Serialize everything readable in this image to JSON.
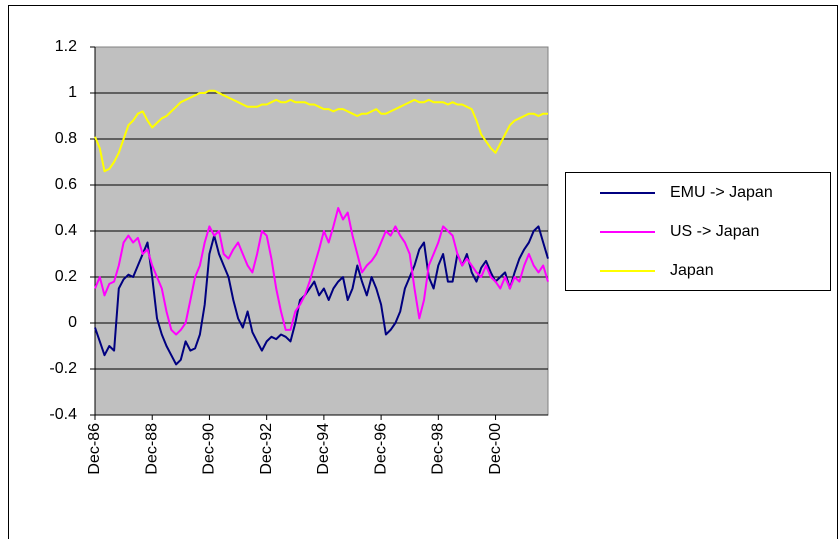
{
  "chart_data": {
    "type": "line",
    "categories": [
      "Dec-86",
      null,
      null,
      null,
      null,
      null,
      null,
      null,
      null,
      null,
      null,
      null,
      "Dec-88",
      null,
      null,
      null,
      null,
      null,
      null,
      null,
      null,
      null,
      null,
      null,
      "Dec-90",
      null,
      null,
      null,
      null,
      null,
      null,
      null,
      null,
      null,
      null,
      null,
      "Dec-92",
      null,
      null,
      null,
      null,
      null,
      null,
      null,
      null,
      null,
      null,
      null,
      "Dec-94",
      null,
      null,
      null,
      null,
      null,
      null,
      null,
      null,
      null,
      null,
      null,
      "Dec-96",
      null,
      null,
      null,
      null,
      null,
      null,
      null,
      null,
      null,
      null,
      null,
      "Dec-98",
      null,
      null,
      null,
      null,
      null,
      null,
      null,
      null,
      null,
      null,
      null,
      "Dec-00",
      null,
      null,
      null,
      null,
      null,
      null,
      null,
      null,
      null,
      null,
      null
    ],
    "series": [
      {
        "name": "EMU -> Japan",
        "color": "#000080",
        "values": [
          -0.02,
          -0.08,
          -0.14,
          -0.1,
          -0.12,
          0.15,
          0.19,
          0.21,
          0.2,
          0.25,
          0.3,
          0.35,
          0.2,
          0.02,
          -0.05,
          -0.1,
          -0.14,
          -0.18,
          -0.16,
          -0.08,
          -0.12,
          -0.11,
          -0.05,
          0.08,
          0.3,
          0.38,
          0.3,
          0.25,
          0.2,
          0.1,
          0.02,
          -0.02,
          0.05,
          -0.04,
          -0.08,
          -0.12,
          -0.08,
          -0.06,
          -0.07,
          -0.05,
          -0.06,
          -0.08,
          0.0,
          0.1,
          0.12,
          0.15,
          0.18,
          0.12,
          0.15,
          0.1,
          0.15,
          0.18,
          0.2,
          0.1,
          0.15,
          0.25,
          0.18,
          0.12,
          0.2,
          0.15,
          0.08,
          -0.05,
          -0.03,
          0.0,
          0.05,
          0.15,
          0.2,
          0.25,
          0.32,
          0.35,
          0.2,
          0.15,
          0.25,
          0.3,
          0.18,
          0.18,
          0.3,
          0.25,
          0.3,
          0.22,
          0.18,
          0.24,
          0.27,
          0.22,
          0.18,
          0.2,
          0.22,
          0.15,
          0.22,
          0.28,
          0.32,
          0.35,
          0.4,
          0.42,
          0.35,
          0.28
        ]
      },
      {
        "name": "US -> Japan",
        "color": "#ff00ff",
        "values": [
          0.15,
          0.2,
          0.12,
          0.17,
          0.18,
          0.25,
          0.35,
          0.38,
          0.35,
          0.37,
          0.3,
          0.32,
          0.25,
          0.2,
          0.15,
          0.05,
          -0.03,
          -0.05,
          -0.03,
          0.0,
          0.1,
          0.2,
          0.25,
          0.35,
          0.42,
          0.38,
          0.4,
          0.3,
          0.28,
          0.32,
          0.35,
          0.3,
          0.25,
          0.22,
          0.3,
          0.4,
          0.38,
          0.28,
          0.15,
          0.05,
          -0.03,
          -0.03,
          0.05,
          0.08,
          0.12,
          0.18,
          0.25,
          0.32,
          0.4,
          0.35,
          0.42,
          0.5,
          0.45,
          0.48,
          0.38,
          0.3,
          0.22,
          0.25,
          0.27,
          0.3,
          0.35,
          0.4,
          0.38,
          0.42,
          0.38,
          0.35,
          0.3,
          0.15,
          0.02,
          0.1,
          0.25,
          0.3,
          0.35,
          0.42,
          0.4,
          0.38,
          0.3,
          0.25,
          0.28,
          0.25,
          0.22,
          0.2,
          0.25,
          0.2,
          0.18,
          0.15,
          0.2,
          0.15,
          0.2,
          0.18,
          0.25,
          0.3,
          0.25,
          0.22,
          0.25,
          0.18
        ]
      },
      {
        "name": "Japan",
        "color": "#ffff00",
        "values": [
          0.81,
          0.76,
          0.66,
          0.67,
          0.7,
          0.74,
          0.8,
          0.86,
          0.88,
          0.91,
          0.92,
          0.88,
          0.85,
          0.87,
          0.89,
          0.9,
          0.92,
          0.94,
          0.96,
          0.97,
          0.98,
          0.99,
          1.0,
          1.0,
          1.01,
          1.01,
          1.0,
          0.99,
          0.98,
          0.97,
          0.96,
          0.95,
          0.94,
          0.94,
          0.94,
          0.95,
          0.95,
          0.96,
          0.97,
          0.96,
          0.96,
          0.97,
          0.96,
          0.96,
          0.96,
          0.95,
          0.95,
          0.94,
          0.93,
          0.93,
          0.92,
          0.93,
          0.93,
          0.92,
          0.91,
          0.9,
          0.91,
          0.91,
          0.92,
          0.93,
          0.91,
          0.91,
          0.92,
          0.93,
          0.94,
          0.95,
          0.96,
          0.97,
          0.96,
          0.96,
          0.97,
          0.96,
          0.96,
          0.96,
          0.95,
          0.96,
          0.95,
          0.95,
          0.94,
          0.93,
          0.88,
          0.82,
          0.79,
          0.76,
          0.74,
          0.78,
          0.82,
          0.86,
          0.88,
          0.89,
          0.9,
          0.91,
          0.91,
          0.9,
          0.91,
          0.91
        ]
      }
    ],
    "ylim": [
      -0.4,
      1.2
    ],
    "yticks": [
      -0.4,
      -0.2,
      0,
      0.2,
      0.4,
      0.6,
      0.8,
      1,
      1.2
    ],
    "grid": true,
    "legend": "right"
  }
}
